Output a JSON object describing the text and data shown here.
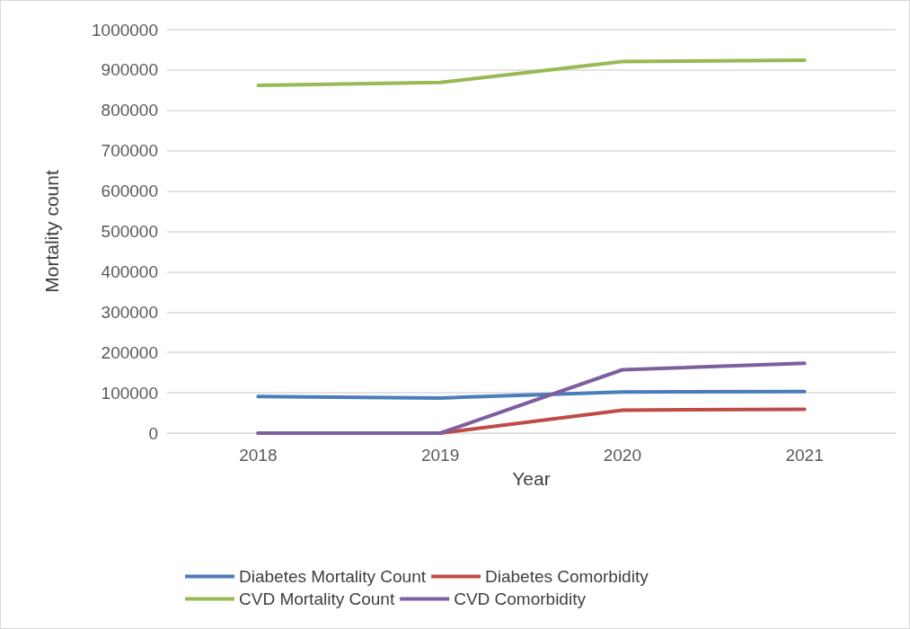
{
  "chart_data": {
    "type": "line",
    "xlabel": "Year",
    "ylabel": "Mortality count",
    "categories": [
      "2018",
      "2019",
      "2020",
      "2021"
    ],
    "series": [
      {
        "name": "Diabetes Mortality Count",
        "color": "#4a7ebb",
        "values": [
          91000,
          87000,
          102000,
          103000
        ]
      },
      {
        "name": "Diabetes Comorbidity",
        "color": "#be4b48",
        "values": [
          0,
          0,
          57000,
          59000
        ]
      },
      {
        "name": "CVD Mortality Count",
        "color": "#98b954",
        "values": [
          862000,
          869000,
          921000,
          924000
        ]
      },
      {
        "name": "CVD Comorbidity",
        "color": "#7d5fa0",
        "values": [
          0,
          0,
          157000,
          173000
        ]
      }
    ],
    "ylim": [
      0,
      1000000
    ],
    "yticks": [
      0,
      100000,
      200000,
      300000,
      400000,
      500000,
      600000,
      700000,
      800000,
      900000,
      1000000
    ],
    "grid": "y",
    "legend": "bottom",
    "marker": "none",
    "line_style": "solid"
  }
}
